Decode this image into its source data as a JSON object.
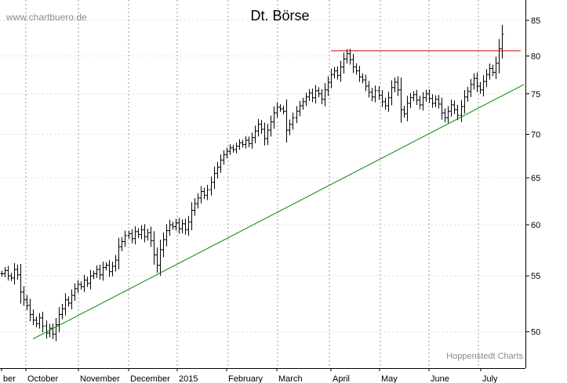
{
  "chart_data": {
    "type": "ohlc",
    "title": "Dt. Börse",
    "site_label": "www.chartbuero.de",
    "credit_label": "Hoppenstedt Charts",
    "xlabel": "",
    "ylabel": "",
    "y_scale": "log",
    "ylim": [
      47,
      88
    ],
    "y_ticks": [
      50,
      55,
      60,
      65,
      70,
      75,
      80,
      85
    ],
    "x_tick_labels": [
      "ber",
      "October",
      "November",
      "December",
      "2015",
      "February",
      "March",
      "April",
      "May",
      "June",
      "July"
    ],
    "grid": true,
    "colors": {
      "bars": "#000000",
      "resistance": "#cc0000",
      "trend": "#008800",
      "grid": "#999999"
    },
    "resistance_level": 80.7,
    "trendline": {
      "start": 49.4,
      "end": 76.2
    },
    "close_series": [
      55.2,
      55.5,
      55.0,
      54.8,
      55.6,
      55.1,
      53.5,
      52.8,
      52.3,
      51.5,
      51.0,
      50.7,
      51.2,
      50.5,
      49.9,
      50.3,
      49.8,
      50.6,
      51.5,
      52.0,
      52.8,
      52.5,
      53.2,
      53.8,
      54.2,
      54.0,
      54.6,
      54.3,
      55.0,
      55.2,
      55.6,
      55.1,
      55.8,
      56.0,
      55.4,
      55.9,
      56.5,
      57.8,
      58.3,
      58.9,
      59.1,
      58.6,
      59.3,
      59.0,
      59.5,
      58.8,
      59.2,
      58.4,
      57.0,
      56.0,
      57.5,
      58.5,
      59.4,
      60.0,
      59.8,
      60.2,
      59.6,
      60.1,
      59.5,
      60.3,
      61.5,
      62.2,
      62.8,
      63.5,
      63.1,
      63.7,
      64.5,
      65.5,
      66.2,
      67.0,
      67.6,
      68.0,
      68.4,
      68.2,
      68.6,
      69.0,
      68.8,
      69.3,
      68.9,
      69.6,
      70.4,
      71.2,
      70.6,
      69.5,
      70.5,
      71.5,
      72.6,
      73.3,
      73.1,
      72.8,
      70.5,
      71.2,
      72.0,
      72.8,
      73.5,
      74.0,
      74.6,
      75.1,
      74.5,
      75.4,
      75.0,
      74.3,
      75.5,
      76.5,
      77.5,
      78.0,
      77.4,
      78.5,
      79.6,
      80.3,
      79.5,
      78.5,
      78.0,
      77.2,
      76.8,
      76.0,
      75.2,
      74.6,
      75.4,
      74.8,
      74.0,
      73.5,
      74.5,
      75.8,
      76.5,
      75.5,
      73.0,
      72.5,
      73.8,
      74.5,
      74.9,
      74.2,
      73.6,
      74.5,
      75.0,
      74.4,
      73.8,
      74.3,
      73.7,
      72.6,
      72.0,
      72.8,
      73.6,
      73.0,
      72.3,
      73.4,
      74.6,
      75.3,
      76.2,
      77.0,
      76.0,
      75.5,
      76.6,
      77.5,
      78.3,
      77.8,
      79.0,
      81.0,
      83.0
    ]
  }
}
